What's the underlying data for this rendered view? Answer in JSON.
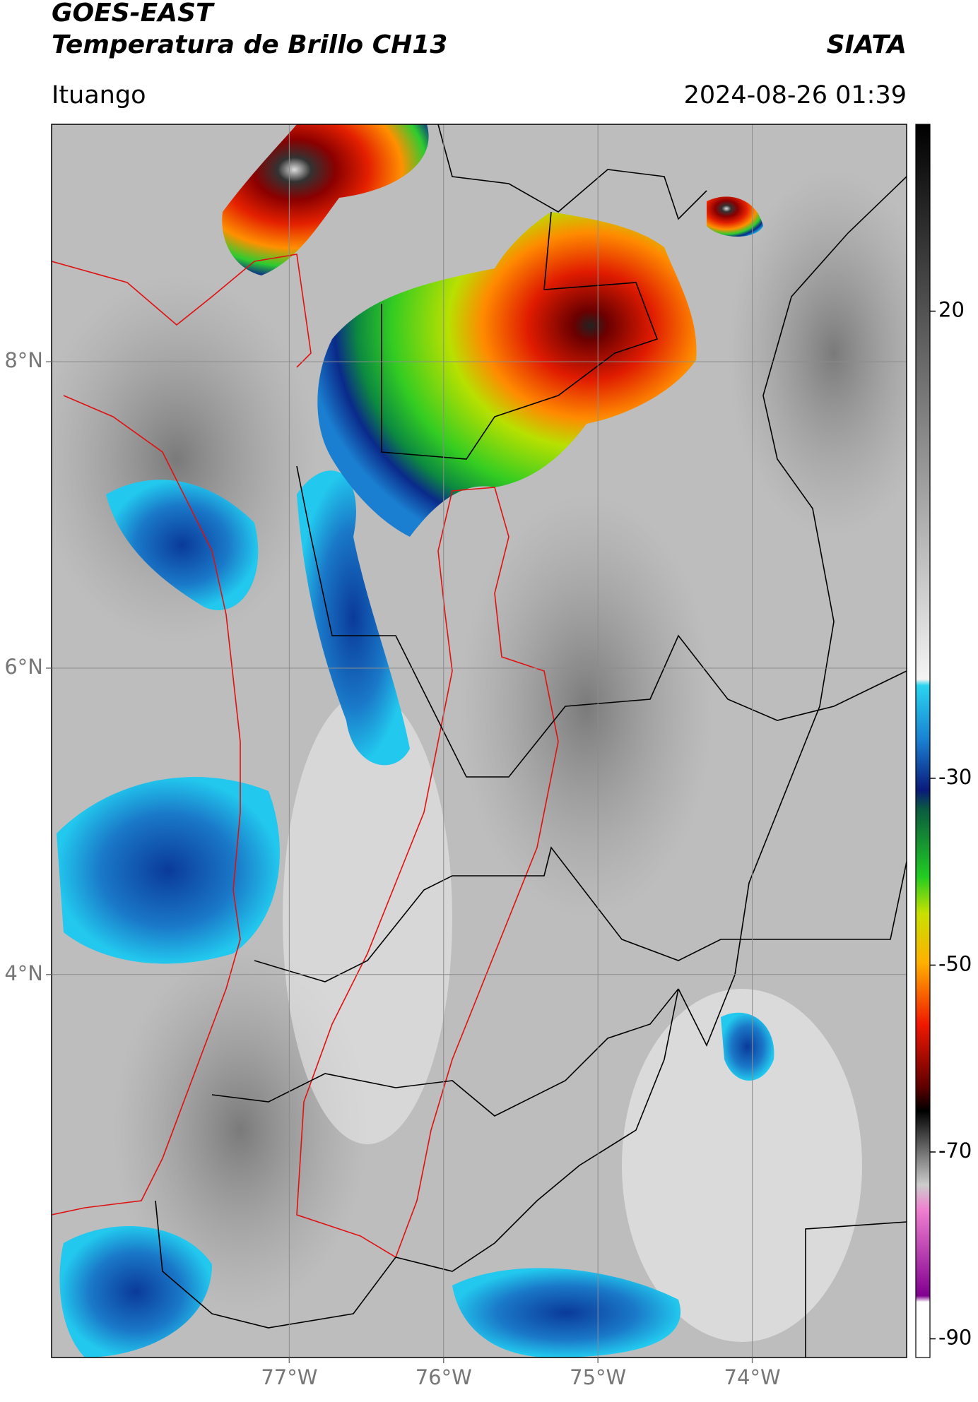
{
  "header": {
    "title": "GOES-EAST",
    "subtitle": "Temperatura de Brillo CH13",
    "source": "SIATA",
    "region": "Ituango",
    "datetime": "2024-08-26 01:39"
  },
  "map": {
    "xlim": [
      -78.54,
      -73.0
    ],
    "ylim": [
      1.5,
      9.55
    ],
    "xticks": [
      {
        "value": -77,
        "label": "77°W"
      },
      {
        "value": -76,
        "label": "76°W"
      },
      {
        "value": -75,
        "label": "75°W"
      },
      {
        "value": -74,
        "label": "74°W"
      }
    ],
    "yticks": [
      {
        "value": 8,
        "label": "8°N"
      },
      {
        "value": 6,
        "label": "6°N"
      },
      {
        "value": 4,
        "label": "4°N"
      }
    ],
    "grid": true
  },
  "colorbar": {
    "clim": [
      -92,
      40
    ],
    "ticks": [
      20,
      -30,
      -50,
      -70,
      -90
    ]
  }
}
